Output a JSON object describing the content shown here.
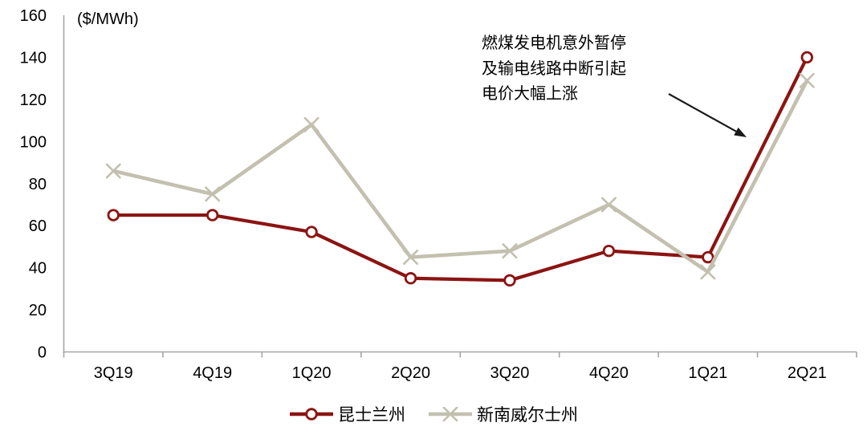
{
  "chart_data": {
    "type": "line",
    "unit_label": "($/MWh)",
    "categories": [
      "3Q19",
      "4Q19",
      "1Q20",
      "2Q20",
      "3Q20",
      "4Q20",
      "1Q21",
      "2Q21"
    ],
    "series": [
      {
        "name": "昆士兰州",
        "color": "#8B1412",
        "marker": "circle",
        "values": [
          65,
          65,
          57,
          35,
          34,
          48,
          45,
          140
        ]
      },
      {
        "name": "新南威尔士州",
        "color": "#C3C0AF",
        "marker": "x",
        "values": [
          86,
          75,
          108,
          45,
          48,
          70,
          38,
          129
        ]
      }
    ],
    "ylim": [
      0,
      160
    ],
    "ytick_step": 20,
    "yticks": [
      0,
      20,
      40,
      60,
      80,
      100,
      120,
      140,
      160
    ],
    "grid": false,
    "legend_position": "bottom",
    "axis_color": "#A6A6A6"
  },
  "annotation": {
    "lines": [
      "燃煤发电机意外暂停",
      "及输电线路中断引起",
      "电价大幅上涨"
    ],
    "arrow_color": "#1A1A1A"
  }
}
